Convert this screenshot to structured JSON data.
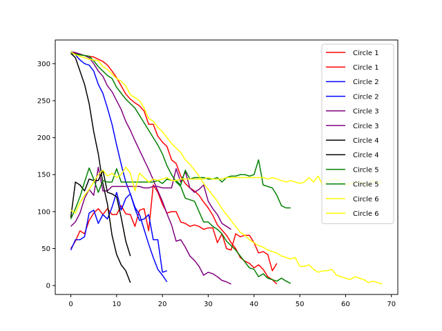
{
  "chart_data": {
    "type": "line",
    "title": "",
    "xlabel": "",
    "ylabel": "",
    "xlim": [
      -3.4,
      71.4
    ],
    "ylim": [
      -12,
      332
    ],
    "xticks": [
      0,
      10,
      20,
      30,
      40,
      50,
      60,
      70
    ],
    "yticks": [
      0,
      50,
      100,
      150,
      200,
      250,
      300
    ],
    "grid": false,
    "legend_position": "top-right",
    "series": [
      {
        "name": "Circle 1",
        "color": "#ff0000",
        "x": [
          0,
          1,
          2,
          3,
          4,
          5,
          6,
          7,
          8,
          9,
          10,
          11,
          12,
          13,
          14,
          15,
          16,
          17,
          18,
          19,
          20,
          21,
          22,
          23,
          24,
          25,
          26,
          27,
          28,
          29,
          30,
          31,
          32,
          33,
          34,
          35,
          36,
          37,
          38,
          39,
          40,
          41,
          42,
          43,
          44,
          45
        ],
        "y": [
          316,
          314,
          312,
          311,
          310,
          309,
          306,
          303,
          298,
          290,
          281,
          270,
          259,
          252,
          247,
          243,
          236,
          218,
          218,
          202,
          194,
          188,
          170,
          165,
          148,
          138,
          132,
          128,
          122,
          113,
          105,
          95,
          82,
          75,
          68,
          58,
          50,
          38,
          33,
          30,
          24,
          28,
          22,
          12,
          8,
          2
        ]
      },
      {
        "name": "Circle 1",
        "color": "#ff0000",
        "x": [
          0,
          1,
          2,
          3,
          4,
          5,
          6,
          7,
          8,
          9,
          10,
          11,
          12,
          13,
          14,
          15,
          16,
          17,
          18,
          19,
          20,
          21,
          22,
          23,
          24,
          25,
          26,
          27,
          28,
          29,
          30,
          31,
          32,
          33,
          34,
          35,
          36,
          37,
          38,
          39,
          40,
          41,
          42,
          43,
          44,
          45
        ],
        "y": [
          50,
          60,
          74,
          70,
          88,
          98,
          104,
          96,
          104,
          96,
          96,
          108,
          97,
          96,
          80,
          102,
          104,
          74,
          136,
          126,
          110,
          98,
          100,
          100,
          86,
          84,
          80,
          82,
          80,
          76,
          78,
          78,
          58,
          70,
          50,
          48,
          70,
          66,
          68,
          68,
          58,
          44,
          46,
          42,
          20,
          30
        ]
      },
      {
        "name": "Circle 2",
        "color": "#0000ff",
        "x": [
          0,
          1,
          2,
          3,
          4,
          5,
          6,
          7,
          8,
          9,
          10,
          11,
          12,
          13,
          14,
          15,
          16,
          17,
          18,
          19,
          20,
          21
        ],
        "y": [
          315,
          312,
          305,
          300,
          298,
          290,
          272,
          260,
          240,
          218,
          190,
          164,
          140,
          124,
          106,
          96,
          76,
          56,
          38,
          22,
          14,
          5
        ]
      },
      {
        "name": "Circle 2",
        "color": "#0000ff",
        "x": [
          0,
          1,
          2,
          3,
          4,
          5,
          6,
          7,
          8,
          9,
          10,
          11,
          12,
          13,
          14,
          15,
          16,
          17,
          18,
          19,
          20,
          21
        ],
        "y": [
          48,
          62,
          62,
          66,
          98,
          102,
          84,
          96,
          90,
          106,
          126,
          102,
          118,
          124,
          104,
          88,
          90,
          96,
          62,
          62,
          18,
          20
        ]
      },
      {
        "name": "Circle 3",
        "color": "#800080",
        "x": [
          0,
          1,
          2,
          3,
          4,
          5,
          6,
          7,
          8,
          9,
          10,
          11,
          12,
          13,
          14,
          15,
          16,
          17,
          18,
          19,
          20,
          21,
          22,
          23,
          24,
          25,
          26,
          27,
          28,
          29,
          30,
          31,
          32,
          33,
          34,
          35
        ],
        "y": [
          316,
          315,
          313,
          311,
          308,
          300,
          290,
          283,
          270,
          262,
          250,
          238,
          222,
          210,
          196,
          183,
          170,
          157,
          143,
          128,
          114,
          97,
          82,
          60,
          62,
          52,
          40,
          34,
          26,
          14,
          18,
          16,
          12,
          7,
          5,
          2
        ]
      },
      {
        "name": "Circle 3",
        "color": "#800080",
        "x": [
          0,
          1,
          2,
          3,
          4,
          5,
          6,
          7,
          8,
          9,
          10,
          11,
          12,
          13,
          14,
          15,
          16,
          17,
          18,
          19,
          20,
          21,
          22,
          23,
          24,
          25,
          26,
          27,
          28,
          29,
          30,
          31,
          32,
          33,
          34,
          35
        ],
        "y": [
          80,
          86,
          98,
          118,
          130,
          122,
          160,
          128,
          128,
          134,
          134,
          134,
          134,
          134,
          134,
          134,
          132,
          132,
          134,
          134,
          132,
          132,
          132,
          158,
          140,
          154,
          132,
          126,
          130,
          136,
          114,
          104,
          96,
          84,
          80,
          76
        ]
      },
      {
        "name": "Circle 4",
        "color": "#000000",
        "x": [
          0,
          1,
          2,
          3,
          4,
          5,
          6,
          7,
          8,
          9,
          10,
          11,
          12,
          13
        ],
        "y": [
          314,
          308,
          290,
          272,
          246,
          208,
          178,
          138,
          110,
          68,
          42,
          28,
          20,
          4
        ]
      },
      {
        "name": "Circle 4",
        "color": "#000000",
        "x": [
          0,
          1,
          2,
          3,
          4,
          5,
          6,
          7,
          8,
          9,
          10,
          11,
          12,
          13
        ],
        "y": [
          92,
          140,
          136,
          128,
          144,
          142,
          142,
          156,
          126,
          124,
          120,
          92,
          60,
          40
        ]
      },
      {
        "name": "Circle 5",
        "color": "#008000",
        "x": [
          0,
          1,
          2,
          3,
          4,
          5,
          6,
          7,
          8,
          9,
          10,
          11,
          12,
          13,
          14,
          15,
          16,
          17,
          18,
          19,
          20,
          21,
          22,
          23,
          24,
          25,
          26,
          27,
          28,
          29,
          30,
          31,
          32,
          33,
          34,
          35,
          36,
          37,
          38,
          39,
          40,
          41,
          42,
          43,
          44,
          45,
          46,
          47,
          48
        ],
        "y": [
          314,
          313,
          312,
          311,
          310,
          304,
          296,
          290,
          284,
          280,
          268,
          260,
          252,
          246,
          240,
          230,
          220,
          210,
          200,
          190,
          178,
          162,
          150,
          140,
          134,
          118,
          116,
          114,
          100,
          86,
          86,
          80,
          76,
          70,
          60,
          54,
          48,
          40,
          32,
          24,
          22,
          12,
          16,
          10,
          8,
          6,
          10,
          6,
          3
        ]
      },
      {
        "name": "Circle 5",
        "color": "#008000",
        "x": [
          0,
          1,
          2,
          3,
          4,
          5,
          6,
          7,
          8,
          9,
          10,
          11,
          12,
          13,
          14,
          15,
          16,
          17,
          18,
          19,
          20,
          21,
          22,
          23,
          24,
          25,
          26,
          27,
          28,
          29,
          30,
          31,
          32,
          33,
          34,
          35,
          36,
          37,
          38,
          39,
          40,
          41,
          42,
          43,
          44,
          45,
          46,
          47,
          48
        ],
        "y": [
          90,
          104,
          120,
          140,
          159,
          144,
          126,
          142,
          140,
          140,
          158,
          140,
          140,
          140,
          140,
          140,
          140,
          140,
          140,
          142,
          138,
          144,
          142,
          142,
          136,
          156,
          144,
          146,
          146,
          146,
          144,
          144,
          146,
          140,
          146,
          148,
          148,
          150,
          150,
          148,
          150,
          170,
          136,
          134,
          132,
          122,
          108,
          105,
          105
        ]
      },
      {
        "name": "Circle 6",
        "color": "#ffff00",
        "x": [
          0,
          1,
          2,
          3,
          4,
          5,
          6,
          7,
          8,
          9,
          10,
          11,
          12,
          13,
          14,
          15,
          16,
          17,
          18,
          19,
          20,
          21,
          22,
          23,
          24,
          25,
          26,
          27,
          28,
          29,
          30,
          31,
          32,
          33,
          34,
          35,
          36,
          37,
          38,
          39,
          40,
          41,
          42,
          43,
          44,
          45,
          46,
          47,
          48,
          49,
          50,
          51,
          52,
          53,
          54,
          55,
          56,
          57,
          58,
          59,
          60,
          61,
          62,
          63,
          64,
          65,
          66,
          67,
          68
        ],
        "y": [
          316,
          312,
          310,
          308,
          306,
          305,
          304,
          296,
          292,
          286,
          280,
          276,
          270,
          258,
          254,
          250,
          240,
          226,
          222,
          214,
          208,
          200,
          192,
          186,
          180,
          170,
          164,
          156,
          148,
          138,
          130,
          122,
          114,
          104,
          96,
          88,
          80,
          72,
          68,
          62,
          58,
          54,
          52,
          48,
          46,
          44,
          40,
          38,
          36,
          38,
          26,
          26,
          28,
          22,
          18,
          20,
          20,
          22,
          14,
          12,
          10,
          8,
          12,
          10,
          8,
          4,
          6,
          4,
          2
        ]
      },
      {
        "name": "Circle 6",
        "color": "#ffff00",
        "x": [
          0,
          1,
          2,
          3,
          4,
          5,
          6,
          7,
          8,
          9,
          10,
          11,
          12,
          13,
          14,
          15,
          16,
          17,
          18,
          19,
          20,
          21,
          22,
          23,
          24,
          25,
          26,
          27,
          28,
          29,
          30,
          31,
          32,
          33,
          34,
          35,
          36,
          37,
          38,
          39,
          40,
          41,
          42,
          43,
          44,
          45,
          46,
          47,
          48,
          49,
          50,
          51,
          52,
          53,
          54,
          55,
          56,
          57,
          58,
          59,
          60,
          61,
          62,
          63,
          64,
          65,
          66,
          67,
          68
        ],
        "y": [
          102,
          98,
          112,
          122,
          130,
          140,
          150,
          156,
          148,
          152,
          146,
          150,
          160,
          152,
          128,
          152,
          146,
          140,
          144,
          142,
          144,
          146,
          142,
          142,
          144,
          144,
          144,
          144,
          144,
          144,
          146,
          144,
          144,
          144,
          146,
          146,
          146,
          146,
          146,
          146,
          146,
          146,
          146,
          144,
          146,
          144,
          142,
          140,
          142,
          140,
          138,
          140,
          146,
          140,
          148,
          136,
          140,
          144,
          144,
          140,
          136,
          138,
          138,
          140,
          138,
          136,
          142,
          138,
          140
        ]
      }
    ]
  }
}
